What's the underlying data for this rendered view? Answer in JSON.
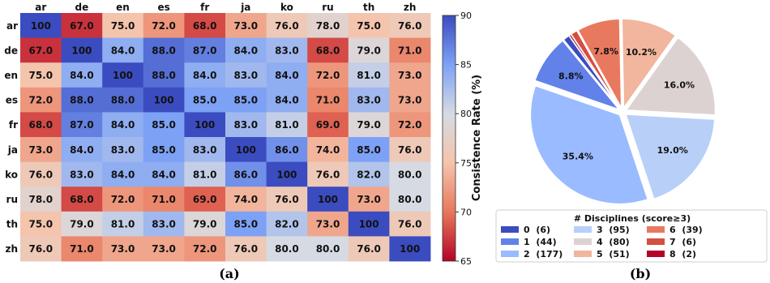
{
  "chart_data": [
    {
      "type": "heatmap",
      "panel_label": "(a)",
      "x_categories": [
        "ar",
        "de",
        "en",
        "es",
        "fr",
        "ja",
        "ko",
        "ru",
        "th",
        "zh"
      ],
      "y_categories": [
        "ar",
        "de",
        "en",
        "es",
        "fr",
        "ja",
        "ko",
        "ru",
        "th",
        "zh"
      ],
      "values": [
        [
          100,
          67.0,
          75.0,
          72.0,
          68.0,
          73.0,
          76.0,
          78.0,
          75.0,
          76.0
        ],
        [
          67.0,
          100,
          84.0,
          88.0,
          87.0,
          84.0,
          83.0,
          68.0,
          79.0,
          71.0
        ],
        [
          75.0,
          84.0,
          100,
          88.0,
          84.0,
          83.0,
          84.0,
          72.0,
          81.0,
          73.0
        ],
        [
          72.0,
          88.0,
          88.0,
          100,
          85.0,
          85.0,
          84.0,
          71.0,
          83.0,
          73.0
        ],
        [
          68.0,
          87.0,
          84.0,
          85.0,
          100,
          83.0,
          81.0,
          69.0,
          79.0,
          72.0
        ],
        [
          73.0,
          84.0,
          83.0,
          85.0,
          83.0,
          100,
          86.0,
          74.0,
          85.0,
          76.0
        ],
        [
          76.0,
          83.0,
          84.0,
          84.0,
          81.0,
          86.0,
          100,
          76.0,
          82.0,
          80.0
        ],
        [
          78.0,
          68.0,
          72.0,
          71.0,
          69.0,
          74.0,
          76.0,
          100,
          73.0,
          80.0
        ],
        [
          75.0,
          79.0,
          81.0,
          83.0,
          79.0,
          85.0,
          82.0,
          73.0,
          100,
          76.0
        ],
        [
          76.0,
          71.0,
          73.0,
          73.0,
          72.0,
          76.0,
          80.0,
          80.0,
          76.0,
          100
        ]
      ],
      "value_labels": [
        [
          "100",
          "67.0",
          "75.0",
          "72.0",
          "68.0",
          "73.0",
          "76.0",
          "78.0",
          "75.0",
          "76.0"
        ],
        [
          "67.0",
          "100",
          "84.0",
          "88.0",
          "87.0",
          "84.0",
          "83.0",
          "68.0",
          "79.0",
          "71.0"
        ],
        [
          "75.0",
          "84.0",
          "100",
          "88.0",
          "84.0",
          "83.0",
          "84.0",
          "72.0",
          "81.0",
          "73.0"
        ],
        [
          "72.0",
          "88.0",
          "88.0",
          "100",
          "85.0",
          "85.0",
          "84.0",
          "71.0",
          "83.0",
          "73.0"
        ],
        [
          "68.0",
          "87.0",
          "84.0",
          "85.0",
          "100",
          "83.0",
          "81.0",
          "69.0",
          "79.0",
          "72.0"
        ],
        [
          "73.0",
          "84.0",
          "83.0",
          "85.0",
          "83.0",
          "100",
          "86.0",
          "74.0",
          "85.0",
          "76.0"
        ],
        [
          "76.0",
          "83.0",
          "84.0",
          "84.0",
          "81.0",
          "86.0",
          "100",
          "76.0",
          "82.0",
          "80.0"
        ],
        [
          "78.0",
          "68.0",
          "72.0",
          "71.0",
          "69.0",
          "74.0",
          "76.0",
          "100",
          "73.0",
          "80.0"
        ],
        [
          "75.0",
          "79.0",
          "81.0",
          "83.0",
          "79.0",
          "85.0",
          "82.0",
          "73.0",
          "100",
          "76.0"
        ],
        [
          "76.0",
          "71.0",
          "73.0",
          "73.0",
          "72.0",
          "76.0",
          "80.0",
          "80.0",
          "76.0",
          "100"
        ]
      ],
      "colorbar": {
        "label": "Consistence Rate (%)",
        "range": [
          65,
          90
        ],
        "ticks": [
          "90",
          "85",
          "80",
          "75",
          "70",
          "65"
        ],
        "colormap": "coolwarm_r"
      }
    },
    {
      "type": "pie",
      "panel_label": "(b)",
      "legend_title": "# Disciplines (score≥3)",
      "legend_position": "bottom",
      "slices": [
        {
          "label": "0  (6)",
          "value": 6,
          "color": "#3b4cc0",
          "pct_label": ""
        },
        {
          "label": "1  (44)",
          "value": 44,
          "color": "#6282ea",
          "pct_label": "8.8%"
        },
        {
          "label": "2  (177)",
          "value": 177,
          "color": "#9abbff",
          "pct_label": "35.4%"
        },
        {
          "label": "3  (95)",
          "value": 95,
          "color": "#b8cff8",
          "pct_label": "19.0%"
        },
        {
          "label": "4  (80)",
          "value": 80,
          "color": "#ddd2d2",
          "pct_label": "16.0%"
        },
        {
          "label": "5  (51)",
          "value": 51,
          "color": "#f2b59d",
          "pct_label": "10.2%"
        },
        {
          "label": "6  (39)",
          "value": 39,
          "color": "#e8795f",
          "pct_label": "7.8%"
        },
        {
          "label": "7  (6)",
          "value": 6,
          "color": "#d44e41",
          "pct_label": ""
        },
        {
          "label": "8  (2)",
          "value": 2,
          "color": "#b40426",
          "pct_label": ""
        }
      ],
      "start_angle_deg": 125,
      "direction": "counterclockwise",
      "exploded": true
    }
  ]
}
